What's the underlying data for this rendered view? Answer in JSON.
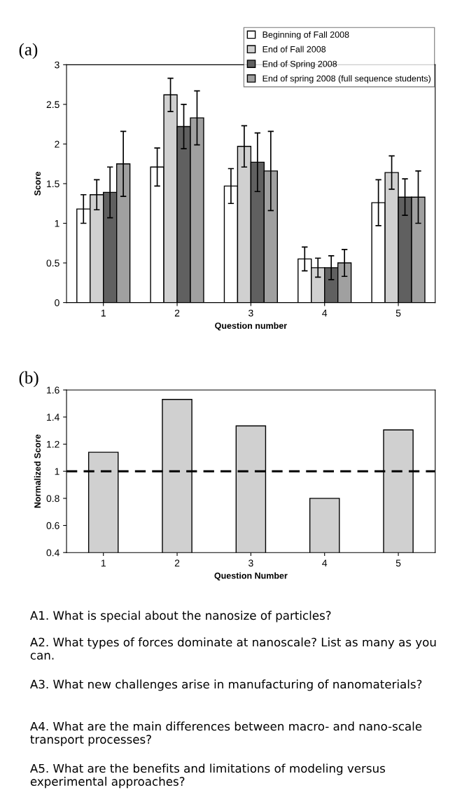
{
  "chart_data": [
    {
      "type": "bar",
      "title": "(a)",
      "xlabel": "Question number",
      "ylabel": "Score",
      "categories": [
        "1",
        "2",
        "3",
        "4",
        "5"
      ],
      "series": [
        {
          "name": "Beginning of Fall 2008",
          "color": "#ffffff",
          "values": [
            1.18,
            1.71,
            1.47,
            0.55,
            1.26
          ],
          "errors": [
            0.18,
            0.24,
            0.22,
            0.15,
            0.29
          ]
        },
        {
          "name": "End of Fall 2008",
          "color": "#d0d0d0",
          "values": [
            1.36,
            2.62,
            1.97,
            0.44,
            1.64
          ],
          "errors": [
            0.19,
            0.21,
            0.26,
            0.12,
            0.21
          ]
        },
        {
          "name": "End of Spring 2008",
          "color": "#606060",
          "values": [
            1.39,
            2.22,
            1.77,
            0.44,
            1.33
          ],
          "errors": [
            0.32,
            0.28,
            0.37,
            0.15,
            0.23
          ]
        },
        {
          "name": "End of spring 2008 (full sequence students)",
          "color": "#a0a0a0",
          "values": [
            1.75,
            2.33,
            1.66,
            0.5,
            1.33
          ],
          "errors": [
            0.41,
            0.34,
            0.5,
            0.17,
            0.33
          ]
        }
      ],
      "ylim": [
        0,
        3
      ],
      "yticks": [
        0,
        0.5,
        1,
        1.5,
        2,
        2.5,
        3
      ],
      "grid": false,
      "legend": "top right"
    },
    {
      "type": "bar",
      "title": "(b)",
      "xlabel": "Question Number",
      "ylabel": "Normalized Score",
      "categories": [
        "1",
        "2",
        "3",
        "4",
        "5"
      ],
      "values": [
        1.14,
        1.53,
        1.335,
        0.8,
        1.305
      ],
      "color": "#d0d0d0",
      "ylim": [
        0.4,
        1.6
      ],
      "yticks": [
        0.4,
        0.6,
        0.8,
        1,
        1.2,
        1.4,
        1.6
      ],
      "grid": false,
      "legend": false,
      "ref_lines": [
        {
          "axis": "y",
          "value": 1,
          "line_style": "dashed",
          "color": "#000000"
        }
      ],
      "annotations": [
        "A1. What is special about the nanosize of particles?",
        "A2. What types of forces dominate at nanoscale? List as many as you can.",
        "A3. What new challenges arise in manufacturing of nanomaterials?",
        "A4. What are the main differences between macro- and nano-scale transport processes?",
        "A5. What are the benefits and limitations of modeling versus experimental approaches?"
      ]
    }
  ]
}
